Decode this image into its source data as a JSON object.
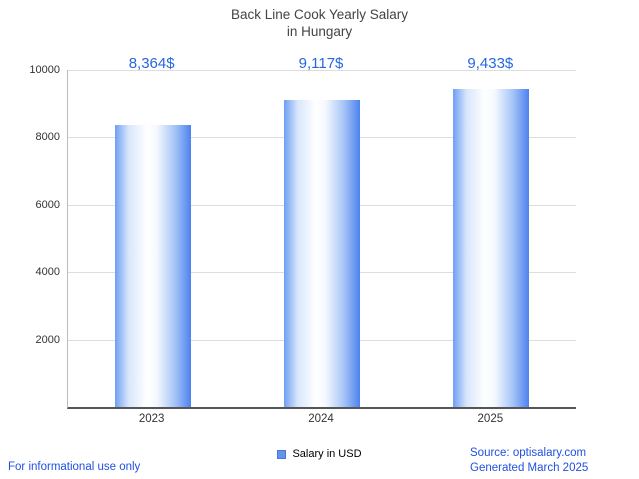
{
  "chart_data": {
    "type": "bar",
    "title_line1": "Back Line Cook Yearly Salary",
    "title_line2": "in Hungary",
    "categories": [
      "2023",
      "2024",
      "2025"
    ],
    "values": [
      8364,
      9117,
      9433
    ],
    "value_labels": [
      "8,364$",
      "9,117$",
      "9,433$"
    ],
    "legend": "Salary in USD",
    "xlabel": "",
    "ylabel": "",
    "ylim": [
      0,
      10000
    ],
    "yticks": [
      2000,
      4000,
      6000,
      8000,
      10000
    ],
    "grid": true,
    "legend_position": "bottom"
  },
  "footer": {
    "disclaimer": "For informational use only",
    "source": "Source: optisalary.com",
    "generated": "Generated March 2025"
  },
  "colors": {
    "value_label_blue": "#2667e0",
    "footer_blue": "#2050e0",
    "bar_edge_blue": "#4d83ef",
    "bar_light": "#ffffff",
    "title_gray": "#444444",
    "gridline_gray": "#dddddd"
  }
}
